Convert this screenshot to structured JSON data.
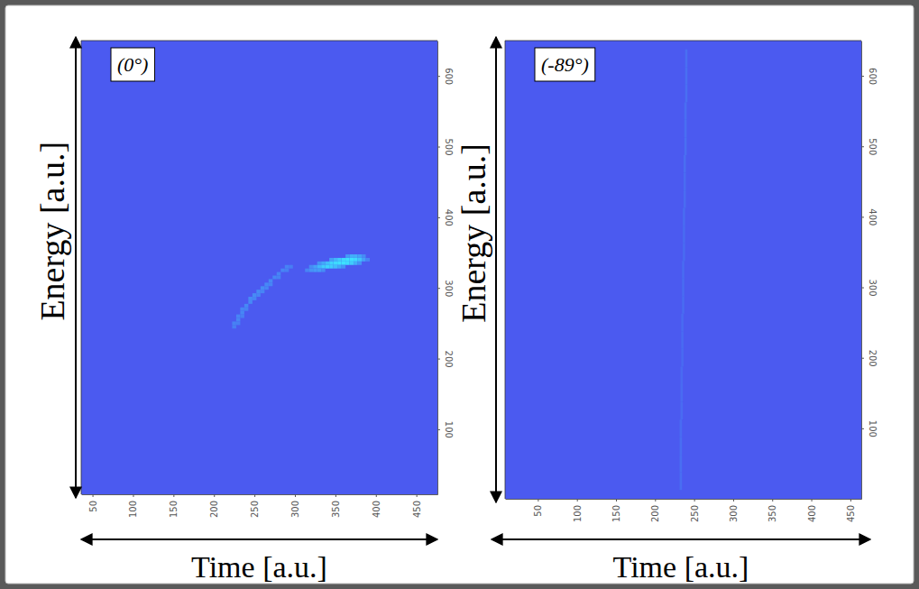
{
  "chart_data": [
    {
      "type": "heatmap",
      "title": "(0°)",
      "x_label": "Time [a.u.]",
      "y_label": "Energy [a.u.]",
      "xlim": [
        36,
        476
      ],
      "ylim": [
        8,
        650
      ],
      "xticks": [
        50,
        100,
        150,
        200,
        250,
        300,
        350,
        400,
        450
      ],
      "yticks": [
        100,
        200,
        300,
        400,
        500,
        600
      ],
      "cell_size": [
        5,
        5
      ],
      "cells": [
        [
          365,
          345,
          0.45
        ],
        [
          370,
          345,
          0.6
        ],
        [
          375,
          345,
          0.6
        ],
        [
          380,
          345,
          0.5
        ],
        [
          385,
          345,
          0.35
        ],
        [
          345,
          340,
          0.5
        ],
        [
          350,
          340,
          0.65
        ],
        [
          355,
          340,
          0.8
        ],
        [
          360,
          340,
          0.9
        ],
        [
          365,
          340,
          0.95
        ],
        [
          370,
          340,
          0.95
        ],
        [
          375,
          340,
          0.9
        ],
        [
          380,
          340,
          0.75
        ],
        [
          385,
          340,
          0.5
        ],
        [
          390,
          340,
          0.3
        ],
        [
          330,
          335,
          0.4
        ],
        [
          335,
          335,
          0.55
        ],
        [
          340,
          335,
          0.7
        ],
        [
          345,
          335,
          0.85
        ],
        [
          350,
          335,
          0.9
        ],
        [
          355,
          335,
          0.95
        ],
        [
          360,
          335,
          0.95
        ],
        [
          365,
          335,
          0.9
        ],
        [
          370,
          335,
          0.8
        ],
        [
          375,
          335,
          0.6
        ],
        [
          380,
          335,
          0.4
        ],
        [
          320,
          330,
          0.35
        ],
        [
          325,
          330,
          0.5
        ],
        [
          330,
          330,
          0.65
        ],
        [
          335,
          330,
          0.8
        ],
        [
          340,
          330,
          0.85
        ],
        [
          345,
          330,
          0.8
        ],
        [
          350,
          330,
          0.7
        ],
        [
          355,
          330,
          0.55
        ],
        [
          360,
          330,
          0.4
        ],
        [
          315,
          325,
          0.3
        ],
        [
          320,
          325,
          0.4
        ],
        [
          325,
          325,
          0.45
        ],
        [
          330,
          325,
          0.45
        ],
        [
          335,
          325,
          0.35
        ],
        [
          225,
          245,
          0.25
        ],
        [
          225,
          250,
          0.28
        ],
        [
          230,
          250,
          0.25
        ],
        [
          230,
          255,
          0.3
        ],
        [
          230,
          260,
          0.3
        ],
        [
          235,
          260,
          0.27
        ],
        [
          235,
          265,
          0.32
        ],
        [
          235,
          270,
          0.32
        ],
        [
          240,
          270,
          0.28
        ],
        [
          240,
          275,
          0.33
        ],
        [
          245,
          280,
          0.33
        ],
        [
          245,
          285,
          0.35
        ],
        [
          250,
          285,
          0.3
        ],
        [
          250,
          290,
          0.35
        ],
        [
          255,
          290,
          0.3
        ],
        [
          255,
          295,
          0.35
        ],
        [
          260,
          295,
          0.3
        ],
        [
          260,
          300,
          0.35
        ],
        [
          265,
          300,
          0.3
        ],
        [
          265,
          305,
          0.33
        ],
        [
          270,
          305,
          0.3
        ],
        [
          270,
          310,
          0.33
        ],
        [
          275,
          315,
          0.32
        ],
        [
          280,
          315,
          0.28
        ],
        [
          280,
          320,
          0.3
        ],
        [
          285,
          325,
          0.3
        ],
        [
          290,
          325,
          0.27
        ],
        [
          290,
          330,
          0.28
        ],
        [
          295,
          330,
          0.25
        ]
      ]
    },
    {
      "type": "heatmap",
      "title": "(-89°)",
      "x_label": "Time [a.u.]",
      "y_label": "Energy [a.u.]",
      "xlim": [
        8,
        464
      ],
      "ylim": [
        0,
        650
      ],
      "xticks": [
        50,
        100,
        150,
        200,
        250,
        300,
        350,
        400,
        450
      ],
      "yticks": [
        100,
        200,
        300,
        400,
        500,
        600
      ],
      "cell_size": [
        3,
        25
      ],
      "cells": [
        [
          240,
          625,
          0.15
        ],
        [
          240,
          600,
          0.15
        ],
        [
          240,
          575,
          0.15
        ],
        [
          239,
          550,
          0.14
        ],
        [
          239,
          525,
          0.14
        ],
        [
          239,
          500,
          0.15
        ],
        [
          238,
          475,
          0.14
        ],
        [
          238,
          450,
          0.13
        ],
        [
          238,
          425,
          0.13
        ],
        [
          237,
          400,
          0.13
        ],
        [
          237,
          375,
          0.12
        ],
        [
          237,
          350,
          0.12
        ],
        [
          236,
          325,
          0.12
        ],
        [
          236,
          300,
          0.12
        ],
        [
          236,
          275,
          0.12
        ],
        [
          235,
          250,
          0.12
        ],
        [
          235,
          225,
          0.12
        ],
        [
          235,
          200,
          0.11
        ],
        [
          234,
          175,
          0.11
        ],
        [
          234,
          150,
          0.12
        ],
        [
          234,
          125,
          0.12
        ],
        [
          233,
          100,
          0.13
        ],
        [
          233,
          75,
          0.14
        ],
        [
          233,
          50,
          0.15
        ],
        [
          233,
          25,
          0.14
        ]
      ]
    }
  ]
}
